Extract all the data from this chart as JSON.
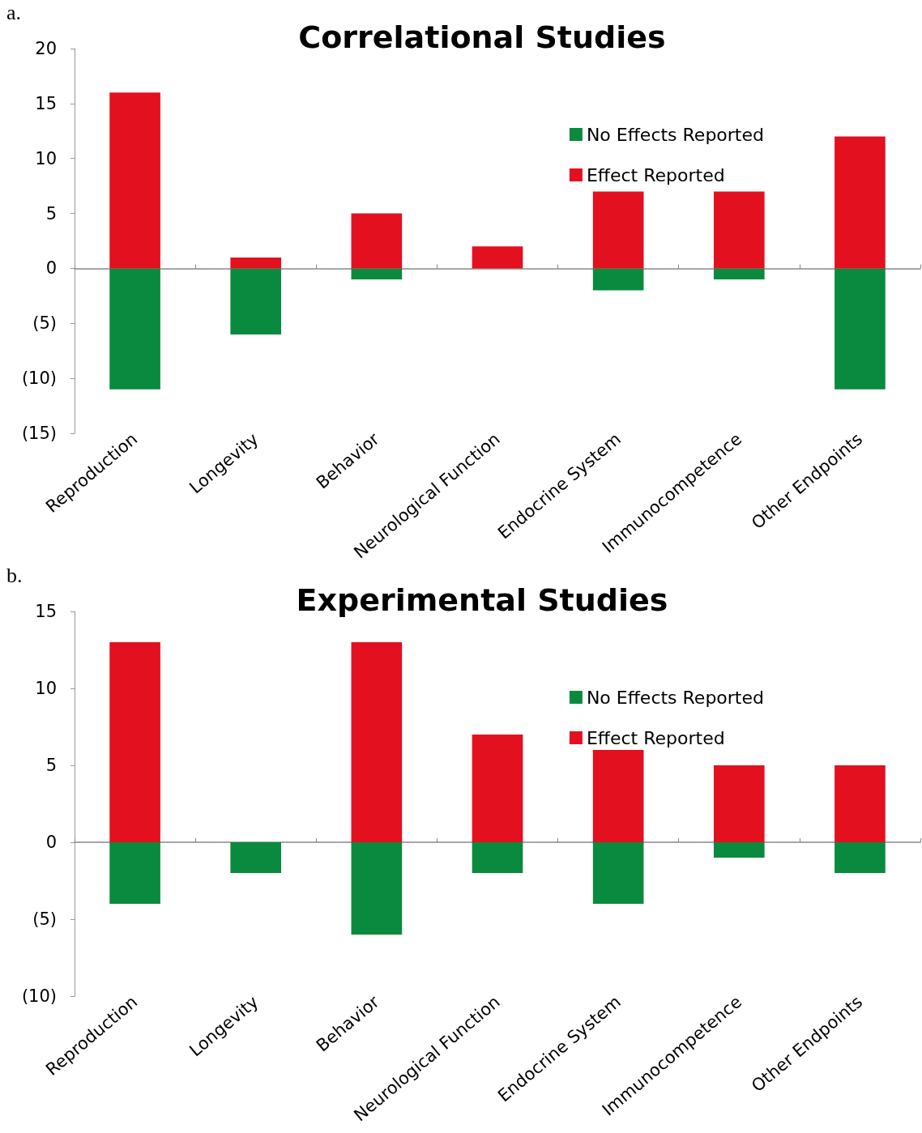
{
  "chart_data": [
    {
      "type": "bar",
      "title": "Correlational Studies",
      "annotations": [
        "a."
      ],
      "stacked": true,
      "legend": "top right",
      "categories": [
        "Reproduction",
        "Longevity",
        "Behavior",
        "Neurological Function",
        "Endocrine System",
        "Immunocompetence",
        "Other Endpoints"
      ],
      "series": [
        {
          "name": "No Effects Reported",
          "color": "#0a8a3e",
          "values": [
            -11,
            -6,
            -1,
            0,
            -2,
            -1,
            -11
          ]
        },
        {
          "name": "Effect Reported",
          "color": "#e3101f",
          "values": [
            16,
            1,
            5,
            2,
            7,
            7,
            12
          ]
        }
      ],
      "ylim": [
        -15,
        20
      ],
      "yticks": [
        {
          "value": -15,
          "label": "(15)"
        },
        {
          "value": -10,
          "label": "(10)"
        },
        {
          "value": -5,
          "label": "(5)"
        },
        0,
        5,
        10,
        15,
        20
      ]
    },
    {
      "type": "bar",
      "title": "Experimental Studies",
      "annotations": [
        "b."
      ],
      "stacked": true,
      "legend": "top right",
      "categories": [
        "Reproduction",
        "Longevity",
        "Behavior",
        "Neurological Function",
        "Endocrine System",
        "Immunocompetence",
        "Other Endpoints"
      ],
      "series": [
        {
          "name": "No Effects Reported",
          "color": "#0a8a3e",
          "values": [
            -4,
            -2,
            -6,
            -2,
            -4,
            -1,
            -2
          ]
        },
        {
          "name": "Effect Reported",
          "color": "#e3101f",
          "values": [
            13,
            0,
            13,
            7,
            6,
            5,
            5
          ]
        }
      ],
      "ylim": [
        -10,
        15
      ],
      "yticks": [
        {
          "value": -10,
          "label": "(10)"
        },
        {
          "value": -5,
          "label": "(5)"
        },
        0,
        5,
        10,
        15
      ]
    }
  ]
}
